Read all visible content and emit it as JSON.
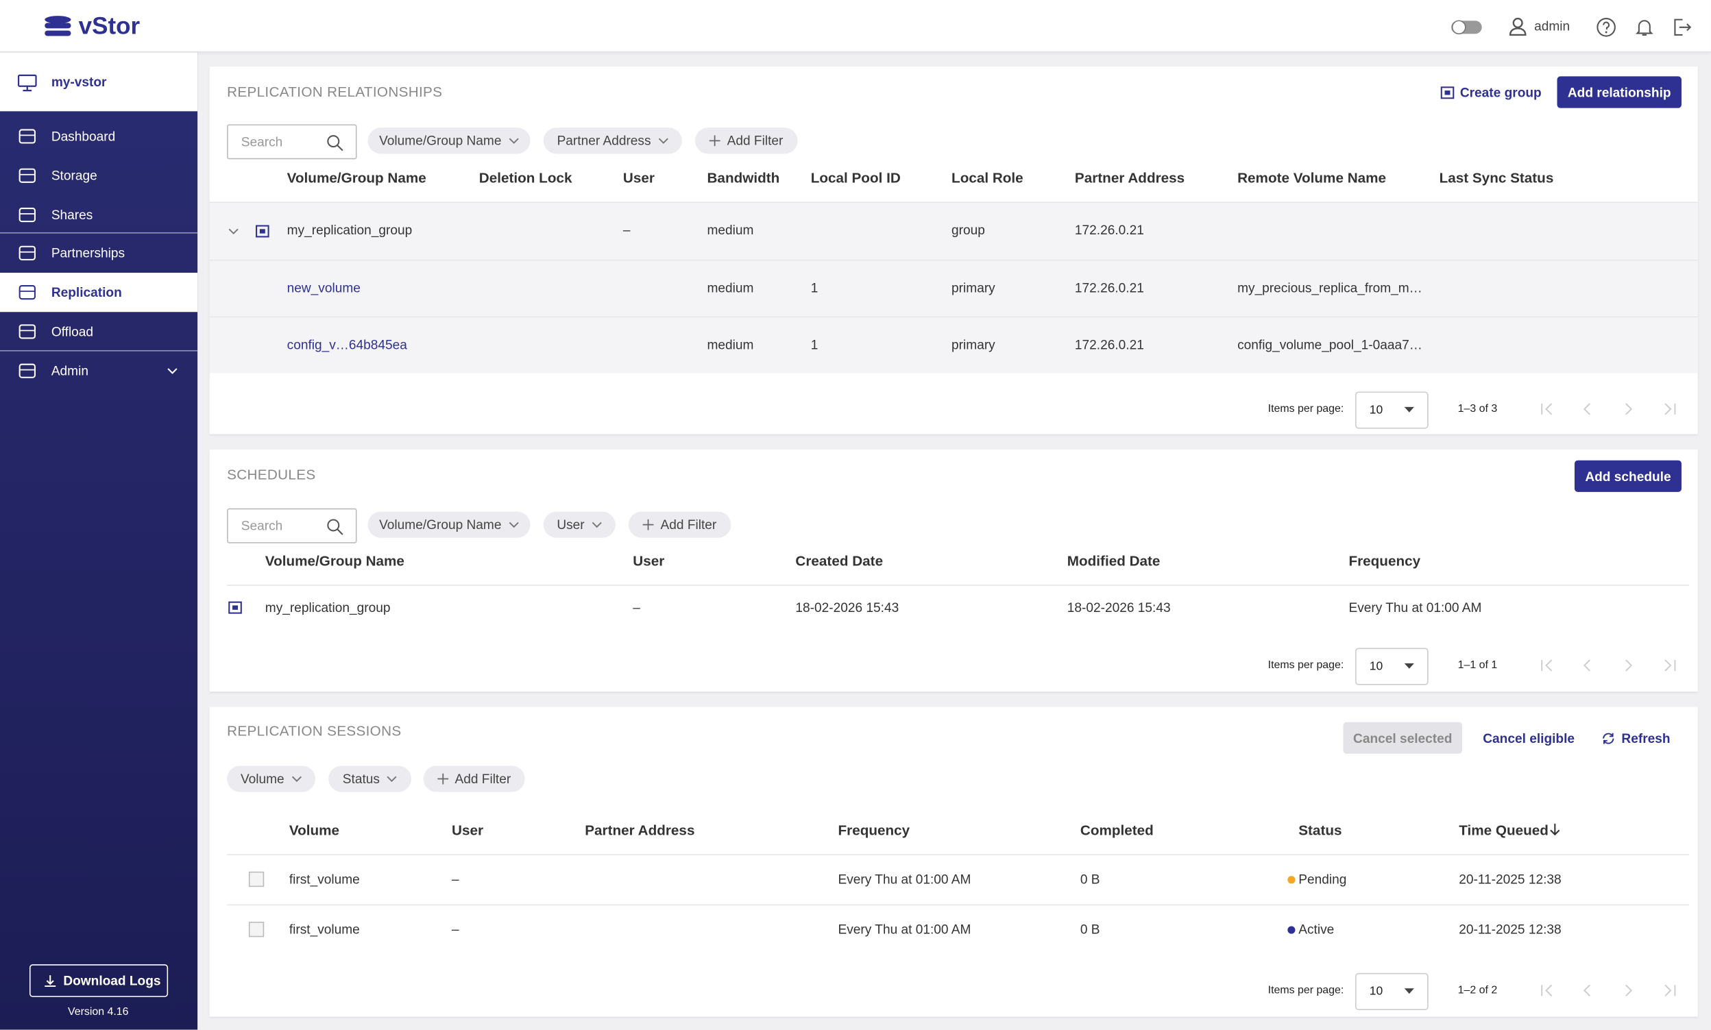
{
  "header": {
    "brand": "vStor",
    "user": "admin"
  },
  "sidebar": {
    "system": "my-vstor",
    "nav": [
      "Dashboard",
      "Storage",
      "Shares",
      "Partnerships",
      "Replication",
      "Offload",
      "Admin"
    ],
    "active": 4,
    "download": "Download Logs",
    "version": "Version 4.16"
  },
  "relationships": {
    "title": "REPLICATION RELATIONSHIPS",
    "actions": [
      "Create group",
      "Add relationship"
    ],
    "search": "Search",
    "filters": [
      "Volume/Group Name",
      "Partner Address",
      "Add Filter"
    ],
    "columns": [
      "Volume/Group Name",
      "Deletion Lock",
      "User",
      "Bandwidth",
      "Local Pool ID",
      "Local Role",
      "Partner Address",
      "Remote Volume Name",
      "Last Sync Status"
    ],
    "rows": [
      [
        "my_replication_group",
        null,
        "–",
        "medium",
        null,
        "group",
        "172.26.0.21",
        null,
        null
      ],
      [
        "new_volume",
        null,
        null,
        "medium",
        1,
        "primary",
        "172.26.0.21",
        "my_precious_replica_from_m…",
        null
      ],
      [
        "config_v…64b845ea",
        null,
        null,
        "medium",
        1,
        "primary",
        "172.26.0.21",
        "config_volume_pool_1-0aaa7…",
        null
      ]
    ],
    "pagination": {
      "label": "Items per page:",
      "size": "10",
      "range": "1–3 of 3"
    }
  },
  "schedules": {
    "title": "SCHEDULES",
    "actions": [
      "Add schedule"
    ],
    "search": "Search",
    "filters": [
      "Volume/Group Name",
      "User",
      "Add Filter"
    ],
    "columns": [
      "Volume/Group Name",
      "User",
      "Created Date",
      "Modified Date",
      "Frequency"
    ],
    "rows": [
      [
        "my_replication_group",
        "–",
        "18-02-2026 15:43",
        "18-02-2026 15:43",
        "Every Thu at 01:00 AM"
      ]
    ],
    "pagination": {
      "label": "Items per page:",
      "size": "10",
      "range": "1–1 of 1"
    }
  },
  "sessions": {
    "title": "REPLICATION SESSIONS",
    "actions": [
      "Cancel selected",
      "Cancel eligible",
      "Refresh"
    ],
    "filters": [
      "Volume",
      "Status",
      "Add Filter"
    ],
    "columns": [
      "Volume",
      "User",
      "Partner Address",
      "Frequency",
      "Completed",
      "Status",
      "Time Queued"
    ],
    "rows": [
      [
        "first_volume",
        "–",
        null,
        "Every Thu at 01:00 AM",
        "0 B",
        "Pending",
        "20-11-2025 12:38"
      ],
      [
        "first_volume",
        "–",
        null,
        "Every Thu at 01:00 AM",
        "0 B",
        "Active",
        "20-11-2025 12:38"
      ]
    ],
    "status_colors": [
      "#f5a623",
      "#2e3192"
    ],
    "pagination": {
      "label": "Items per page:",
      "size": "10",
      "range": "1–2 of 2"
    }
  }
}
